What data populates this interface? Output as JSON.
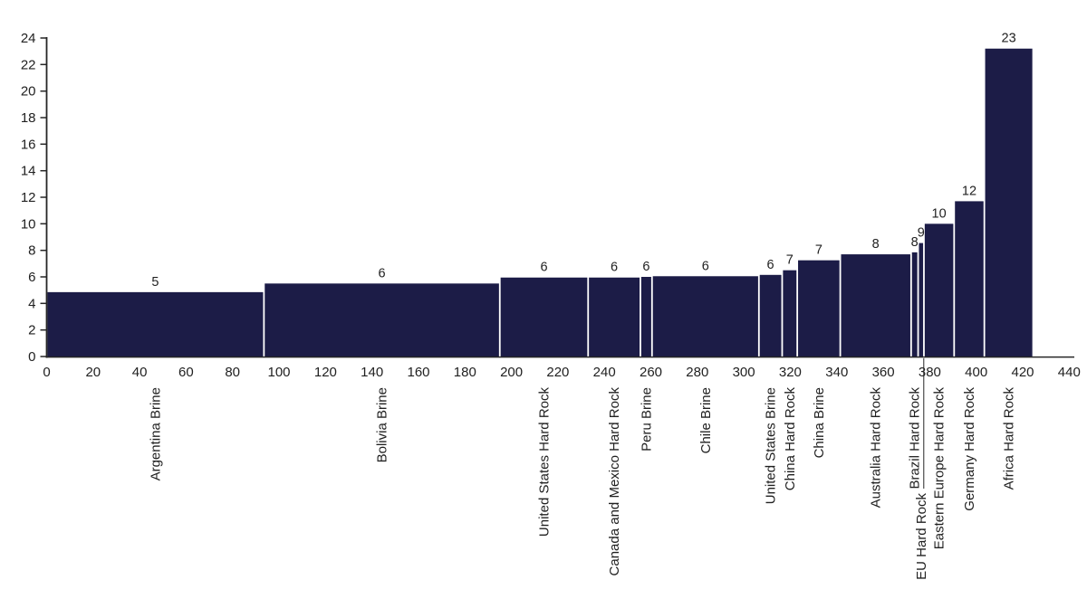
{
  "page": {
    "background": "#ffffff"
  },
  "colors": {
    "bar": "#1c1c47",
    "axis": "#262626",
    "text": "#212121",
    "separator": "#ffffff"
  },
  "chart_data": {
    "type": "bar",
    "variant": "variable-width-cost-curve",
    "title": "",
    "xlabel": "",
    "ylabel": "",
    "xlim": [
      0,
      440
    ],
    "ylim": [
      0,
      24
    ],
    "grid": false,
    "legend": false,
    "x_ticks": [
      0,
      20,
      40,
      60,
      80,
      100,
      120,
      140,
      160,
      180,
      200,
      220,
      240,
      260,
      280,
      300,
      320,
      340,
      360,
      380,
      400,
      420,
      440
    ],
    "y_ticks": [
      0,
      2,
      4,
      6,
      8,
      10,
      12,
      14,
      16,
      18,
      20,
      22,
      24
    ],
    "bars": [
      {
        "name": "Argentina Brine",
        "x_start": 0,
        "x_end": 93.5,
        "value": 4.85,
        "label": "5"
      },
      {
        "name": "Bolivia Brine",
        "x_start": 93.5,
        "x_end": 195,
        "value": 5.5,
        "label": "6"
      },
      {
        "name": "United States Hard Rock",
        "x_start": 195,
        "x_end": 233,
        "value": 5.95,
        "label": "6"
      },
      {
        "name": "Canada and Mexico Hard Rock",
        "x_start": 233,
        "x_end": 255.5,
        "value": 5.95,
        "label": "6"
      },
      {
        "name": "Peru Brine",
        "x_start": 255.5,
        "x_end": 260.5,
        "value": 6.0,
        "label": "6"
      },
      {
        "name": "Chile Brine",
        "x_start": 260.5,
        "x_end": 306.5,
        "value": 6.05,
        "label": "6"
      },
      {
        "name": "United States Brine",
        "x_start": 306.5,
        "x_end": 316.5,
        "value": 6.15,
        "label": "6"
      },
      {
        "name": "China Hard Rock",
        "x_start": 316.5,
        "x_end": 323,
        "value": 6.5,
        "label": "7"
      },
      {
        "name": "China Brine",
        "x_start": 323,
        "x_end": 341.5,
        "value": 7.25,
        "label": "7"
      },
      {
        "name": "Australia Hard Rock",
        "x_start": 341.5,
        "x_end": 372,
        "value": 7.7,
        "label": "8"
      },
      {
        "name": "Brazil Hard Rock",
        "x_start": 372,
        "x_end": 375,
        "value": 7.85,
        "label": "8"
      },
      {
        "name": "EU Hard Rock",
        "x_start": 375,
        "x_end": 377.5,
        "value": 8.55,
        "label": "9",
        "leader_line": true,
        "label_drop": 117
      },
      {
        "name": "Eastern Europe Hard Rock",
        "x_start": 377.5,
        "x_end": 390.5,
        "value": 10.0,
        "label": "10"
      },
      {
        "name": "Germany Hard Rock",
        "x_start": 390.5,
        "x_end": 403.5,
        "value": 11.7,
        "label": "12"
      },
      {
        "name": "Africa Hard Rock",
        "x_start": 403.5,
        "x_end": 424.5,
        "value": 23.2,
        "label": "23"
      }
    ]
  }
}
